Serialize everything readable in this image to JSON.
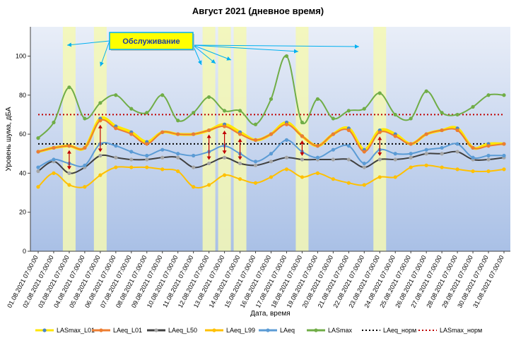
{
  "chart_data": {
    "type": "line",
    "title": "Август 2021 (дневное время)",
    "xlabel": "Дата, время",
    "ylabel": "Уровень шума, дБА",
    "ylim": [
      0,
      115
    ],
    "yticks": [
      0,
      20,
      40,
      60,
      80,
      100
    ],
    "grid": false,
    "legend_position": "bottom",
    "categories": [
      "01.08.2021 07:00:00",
      "02.08.2021 07:00:00",
      "03.08.2021 07:00:00",
      "04.08.2021 07:00:00",
      "05.08.2021 07:00:00",
      "06.08.2021 07:00:00",
      "07.08.2021 07:00:00",
      "08.08.2021 07:00:00",
      "09.08.2021 07:00:00",
      "10.08.2021 07:00:00",
      "11.08.2021 07:00:00",
      "12.08.2021 07:00:00",
      "13.08.2021 07:00:00",
      "14.08.2021 07:00:00",
      "15.08.2021 07:00:00",
      "16.08.2021 07:00:00",
      "17.08.2021 07:00:00",
      "18.08.2021 07:00:00",
      "19.08.2021 07:00:00",
      "20.08.2021 07:00:00",
      "21.08.2021 07:00:00",
      "22.08.2021 07:00:00",
      "23.08.2021 07:00:00",
      "24.08.2021 07:00:00",
      "25.08.2021 07:00:00",
      "26.08.2021 07:00:00",
      "27.08.2021 07:00:00",
      "28.08.2021 07:00:00",
      "29.08.2021 07:00:00",
      "30.08.2021 07:00:00",
      "31.08.2021 07:00:00"
    ],
    "series": [
      {
        "name": "LASmax_L01",
        "color": "#ffe600",
        "marker": "#4a86c8",
        "style": "line",
        "values": [
          51,
          53,
          54,
          53,
          68,
          64,
          61,
          56,
          61,
          60,
          60,
          62,
          65,
          61,
          57,
          60,
          66,
          59,
          54,
          60,
          63,
          52,
          62,
          60,
          55,
          60,
          62,
          63,
          53,
          55,
          55
        ]
      },
      {
        "name": "LAeq_L01",
        "color": "#ed7d31",
        "marker": "#ed7d31",
        "style": "line",
        "values": [
          51,
          53,
          54,
          53,
          67,
          63,
          60,
          55,
          61,
          60,
          60,
          62,
          64,
          60,
          57,
          60,
          65,
          59,
          54,
          60,
          62,
          51,
          61,
          59,
          55,
          60,
          62,
          62,
          53,
          54,
          55
        ]
      },
      {
        "name": "LAeq_L50",
        "color": "#404040",
        "marker": "#a5a5a5",
        "style": "line",
        "values": [
          41,
          46,
          40,
          43,
          49,
          48,
          47,
          47,
          48,
          48,
          43,
          45,
          48,
          45,
          44,
          46,
          48,
          47,
          47,
          47,
          47,
          43,
          47,
          47,
          48,
          50,
          50,
          51,
          47,
          47,
          48
        ]
      },
      {
        "name": "LAeq_L99",
        "color": "#ffc000",
        "marker": "#ffc000",
        "style": "line",
        "values": [
          33,
          40,
          34,
          33,
          39,
          43,
          43,
          43,
          42,
          41,
          33,
          34,
          39,
          37,
          35,
          38,
          42,
          38,
          40,
          37,
          35,
          34,
          38,
          38,
          43,
          44,
          43,
          42,
          41,
          41,
          42
        ]
      },
      {
        "name": "LAeq",
        "color": "#5b9bd5",
        "marker": "#5b9bd5",
        "style": "line",
        "values": [
          43,
          47,
          45,
          44,
          55,
          54,
          51,
          49,
          52,
          50,
          49,
          51,
          54,
          50,
          46,
          50,
          57,
          51,
          48,
          52,
          54,
          45,
          52,
          50,
          50,
          52,
          53,
          55,
          48,
          49,
          49
        ]
      },
      {
        "name": "LASmax",
        "color": "#70ad47",
        "marker": "#70ad47",
        "style": "line",
        "values": [
          58,
          66,
          84,
          68,
          76,
          80,
          73,
          71,
          80,
          67,
          71,
          79,
          72,
          72,
          65,
          78,
          100,
          66,
          78,
          68,
          72,
          73,
          81,
          70,
          68,
          82,
          71,
          70,
          74,
          80,
          80
        ]
      },
      {
        "name": "LAeq_норм",
        "color": "#000000",
        "style": "dotted",
        "values": [
          55,
          55,
          55,
          55,
          55,
          55,
          55,
          55,
          55,
          55,
          55,
          55,
          55,
          55,
          55,
          55,
          55,
          55,
          55,
          55,
          55,
          55,
          55,
          55,
          55,
          55,
          55,
          55,
          55,
          55,
          55
        ]
      },
      {
        "name": "LASmax_норм",
        "color": "#c00000",
        "style": "dotted",
        "values": [
          70,
          70,
          70,
          70,
          70,
          70,
          70,
          70,
          70,
          70,
          70,
          70,
          70,
          70,
          70,
          70,
          70,
          70,
          70,
          70,
          70,
          70,
          70,
          70,
          70,
          70,
          70,
          70,
          70,
          70,
          70
        ]
      }
    ],
    "maintenance_indices": [
      2,
      4,
      11,
      12,
      13,
      17,
      22
    ],
    "deviation_arrow_indices": [
      2,
      4,
      11,
      12,
      13,
      17,
      22
    ],
    "annotation": {
      "text": "Обслуживание",
      "target_indices": [
        2,
        4,
        11,
        12,
        13,
        17,
        22
      ]
    },
    "colors": {
      "band_top": "#e9eef8",
      "band_bottom": "#a9c0e6",
      "highlight": "#f4f8b4",
      "arrow": "#00b0f0",
      "deviation_arrow": "#c00000"
    }
  }
}
